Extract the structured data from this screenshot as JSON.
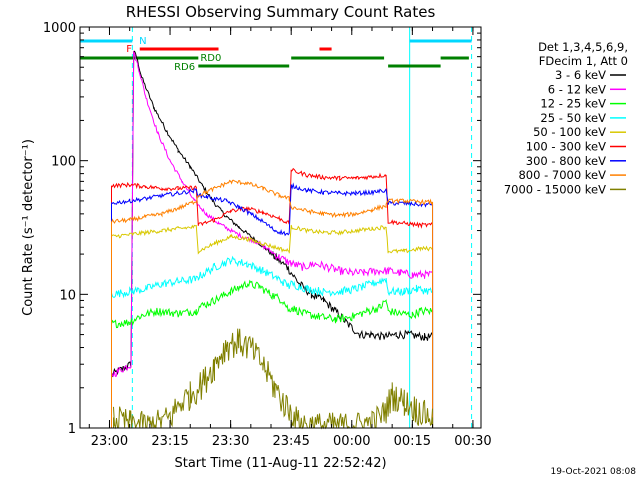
{
  "chart_data": {
    "type": "line",
    "title": "RHESSI Observing Summary Count Rates",
    "xlabel": "Start Time (11-Aug-11 22:52:42)",
    "ylabel": "Count Rate (s⁻¹ detector⁻¹)",
    "y_scale": "log",
    "ylim": [
      1,
      1000
    ],
    "xlim": [
      "22:52:42",
      "00:32:00"
    ],
    "x_ticks": [
      "23:00",
      "23:15",
      "23:30",
      "23:45",
      "00:00",
      "00:15",
      "00:30"
    ],
    "y_ticks": [
      "1",
      "10",
      "100",
      "1000"
    ],
    "grid": false,
    "legend_position": "right",
    "legend_header": [
      "Det 1,3,4,5,6,9,",
      "FDecim 1, Att 0"
    ],
    "footer_date": "19-Oct-2021 08:08",
    "flags": [
      {
        "label": "N",
        "color": "#00d8ff"
      },
      {
        "label": "F",
        "color": "#ff0000"
      },
      {
        "label": "RD0",
        "color": "#008000"
      },
      {
        "label": "RD6",
        "color": "#008000"
      }
    ],
    "series": [
      {
        "name": "3 - 6 keV",
        "color": "#000000",
        "points": [
          [
            "23:00:30",
            2.5
          ],
          [
            "23:05:20",
            3.0
          ],
          [
            "23:06:00",
            660
          ],
          [
            "23:06:40",
            600
          ],
          [
            "23:08:00",
            420
          ],
          [
            "23:11:00",
            250
          ],
          [
            "23:14:00",
            170
          ],
          [
            "23:17:00",
            120
          ],
          [
            "23:20:00",
            90
          ],
          [
            "23:23:00",
            65
          ],
          [
            "23:26:00",
            48
          ],
          [
            "23:29:00",
            38
          ],
          [
            "23:32:00",
            32
          ],
          [
            "23:35:00",
            27
          ],
          [
            "23:38:00",
            23
          ],
          [
            "23:41:00",
            19
          ],
          [
            "23:44:00",
            16
          ],
          [
            "23:47:00",
            12
          ],
          [
            "23:50:00",
            10
          ],
          [
            "23:53:00",
            9
          ],
          [
            "23:56:00",
            7.5
          ],
          [
            "23:59:00",
            6
          ],
          [
            "00:02:00",
            5
          ],
          [
            "00:05:00",
            5
          ],
          [
            "00:08:00",
            4.8
          ],
          [
            "00:11:00",
            5
          ],
          [
            "00:14:00",
            5
          ],
          [
            "00:18:00",
            4.8
          ],
          [
            "00:20:00",
            4.8
          ]
        ]
      },
      {
        "name": "6 - 12 keV",
        "color": "#ff00ff",
        "points": [
          [
            "23:00:30",
            2.5
          ],
          [
            "23:05:20",
            3.0
          ],
          [
            "23:06:00",
            650
          ],
          [
            "23:07:00",
            520
          ],
          [
            "23:09:00",
            300
          ],
          [
            "23:12:00",
            160
          ],
          [
            "23:15:00",
            100
          ],
          [
            "23:18:00",
            70
          ],
          [
            "23:21:00",
            50
          ],
          [
            "23:24:00",
            40
          ],
          [
            "23:27:00",
            34
          ],
          [
            "23:30:00",
            30
          ],
          [
            "23:33:00",
            27
          ],
          [
            "23:36:00",
            25
          ],
          [
            "23:39:00",
            22
          ],
          [
            "23:42:00",
            19
          ],
          [
            "23:45:00",
            17
          ],
          [
            "23:48:00",
            16
          ],
          [
            "23:51:00",
            17
          ],
          [
            "23:54:00",
            16
          ],
          [
            "23:57:00",
            15
          ],
          [
            "00:00:00",
            14.5
          ],
          [
            "00:03:00",
            14.5
          ],
          [
            "00:06:00",
            15
          ],
          [
            "00:09:00",
            15
          ],
          [
            "00:12:00",
            14.5
          ],
          [
            "00:15:00",
            14
          ],
          [
            "00:18:00",
            14
          ],
          [
            "00:20:00",
            14
          ]
        ]
      },
      {
        "name": "12 - 25 keV",
        "color": "#00ff00",
        "points": [
          [
            "23:00:30",
            6
          ],
          [
            "23:05:00",
            6.2
          ],
          [
            "23:08:00",
            7
          ],
          [
            "23:12:00",
            7.5
          ],
          [
            "23:17:00",
            7.2
          ],
          [
            "23:21:30",
            7.5
          ],
          [
            "23:22:00",
            8
          ],
          [
            "23:26:00",
            9
          ],
          [
            "23:30:00",
            10.5
          ],
          [
            "23:34:00",
            12
          ],
          [
            "23:37:00",
            11.5
          ],
          [
            "23:40:00",
            10
          ],
          [
            "23:43:00",
            9
          ],
          [
            "23:44:30",
            7.5
          ],
          [
            "23:45:00",
            8
          ],
          [
            "23:48:00",
            7.2
          ],
          [
            "23:52:00",
            6.8
          ],
          [
            "23:56:00",
            6.5
          ],
          [
            "00:00:00",
            6.8
          ],
          [
            "00:04:00",
            7.5
          ],
          [
            "00:07:00",
            8
          ],
          [
            "00:08:30",
            9
          ],
          [
            "00:09:00",
            7.5
          ],
          [
            "00:12:00",
            7.2
          ],
          [
            "00:15:00",
            7
          ],
          [
            "00:17:00",
            7.5
          ],
          [
            "00:20:00",
            7.5
          ]
        ]
      },
      {
        "name": "25 - 50 keV",
        "color": "#00ffff",
        "points": [
          [
            "23:00:30",
            10
          ],
          [
            "23:05:00",
            10.5
          ],
          [
            "23:09:00",
            11
          ],
          [
            "23:13:00",
            12
          ],
          [
            "23:17:00",
            12.5
          ],
          [
            "23:21:30",
            13
          ],
          [
            "23:22:00",
            13.5
          ],
          [
            "23:26:00",
            16
          ],
          [
            "23:30:00",
            18
          ],
          [
            "23:34:00",
            17
          ],
          [
            "23:38:00",
            15
          ],
          [
            "23:42:00",
            13
          ],
          [
            "23:44:30",
            11.5
          ],
          [
            "23:45:00",
            12
          ],
          [
            "23:49:00",
            11
          ],
          [
            "23:53:00",
            10.5
          ],
          [
            "23:57:00",
            10.5
          ],
          [
            "00:01:00",
            11
          ],
          [
            "00:05:00",
            12
          ],
          [
            "00:08:30",
            13
          ],
          [
            "00:09:00",
            10.5
          ],
          [
            "00:13:00",
            10.5
          ],
          [
            "00:16:00",
            11
          ],
          [
            "00:20:00",
            10.5
          ]
        ]
      },
      {
        "name": "50 - 100 keV",
        "color": "#d8c800",
        "points": [
          [
            "23:00:30",
            27
          ],
          [
            "23:05:00",
            28
          ],
          [
            "23:09:00",
            29
          ],
          [
            "23:13:00",
            30
          ],
          [
            "23:17:00",
            31
          ],
          [
            "23:21:30",
            32
          ],
          [
            "23:22:00",
            21
          ],
          [
            "23:26:00",
            24
          ],
          [
            "23:30:00",
            27
          ],
          [
            "23:34:00",
            26
          ],
          [
            "23:38:00",
            24
          ],
          [
            "23:42:00",
            22
          ],
          [
            "23:44:30",
            21
          ],
          [
            "23:45:00",
            32
          ],
          [
            "23:49:00",
            30
          ],
          [
            "23:53:00",
            29
          ],
          [
            "23:57:00",
            29
          ],
          [
            "00:01:00",
            30
          ],
          [
            "00:05:00",
            31
          ],
          [
            "00:08:30",
            32
          ],
          [
            "00:09:00",
            21
          ],
          [
            "00:13:00",
            21
          ],
          [
            "00:17:00",
            22
          ],
          [
            "00:20:00",
            22
          ]
        ]
      },
      {
        "name": "100 - 300 keV",
        "color": "#ff0000",
        "points": [
          [
            "23:00:30",
            65
          ],
          [
            "23:05:00",
            66
          ],
          [
            "23:09:00",
            64
          ],
          [
            "23:13:00",
            62
          ],
          [
            "23:17:00",
            62
          ],
          [
            "23:21:30",
            63
          ],
          [
            "23:22:00",
            33
          ],
          [
            "23:26:00",
            36
          ],
          [
            "23:30:00",
            42
          ],
          [
            "23:34:00",
            44
          ],
          [
            "23:38:00",
            41
          ],
          [
            "23:42:00",
            37
          ],
          [
            "23:44:30",
            34
          ],
          [
            "23:45:00",
            85
          ],
          [
            "23:49:00",
            78
          ],
          [
            "23:53:00",
            75
          ],
          [
            "23:57:00",
            74
          ],
          [
            "00:01:00",
            74
          ],
          [
            "00:05:00",
            76
          ],
          [
            "00:08:30",
            78
          ],
          [
            "00:09:00",
            35
          ],
          [
            "00:13:00",
            34
          ],
          [
            "00:17:00",
            33
          ],
          [
            "00:20:00",
            33
          ]
        ]
      },
      {
        "name": "300 - 800 keV",
        "color": "#0000ff",
        "points": [
          [
            "23:00:30",
            48
          ],
          [
            "23:05:00",
            50
          ],
          [
            "23:09:00",
            52
          ],
          [
            "23:13:00",
            55
          ],
          [
            "23:17:00",
            57
          ],
          [
            "23:21:30",
            60
          ],
          [
            "23:22:00",
            55
          ],
          [
            "23:24:00",
            54
          ],
          [
            "23:26:00",
            52
          ],
          [
            "23:29:00",
            50
          ],
          [
            "23:32:00",
            45
          ],
          [
            "23:35:00",
            40
          ],
          [
            "23:38:00",
            35
          ],
          [
            "23:41:00",
            30
          ],
          [
            "23:44:30",
            28
          ],
          [
            "23:45:00",
            65
          ],
          [
            "23:49:00",
            60
          ],
          [
            "23:53:00",
            58
          ],
          [
            "23:57:00",
            57
          ],
          [
            "00:01:00",
            57
          ],
          [
            "00:05:00",
            58
          ],
          [
            "00:08:30",
            60
          ],
          [
            "00:09:00",
            48
          ],
          [
            "00:13:00",
            48
          ],
          [
            "00:17:00",
            47
          ],
          [
            "00:20:00",
            47
          ]
        ]
      },
      {
        "name": "800 - 7000 keV",
        "color": "#ff8000",
        "points": [
          [
            "23:00:30",
            35
          ],
          [
            "23:05:00",
            36
          ],
          [
            "23:09:00",
            38
          ],
          [
            "23:13:00",
            40
          ],
          [
            "23:17:00",
            44
          ],
          [
            "23:21:30",
            50
          ],
          [
            "23:22:00",
            55
          ],
          [
            "23:26:00",
            62
          ],
          [
            "23:30:00",
            70
          ],
          [
            "23:34:00",
            68
          ],
          [
            "23:38:00",
            62
          ],
          [
            "23:42:00",
            55
          ],
          [
            "23:44:30",
            52
          ],
          [
            "23:45:00",
            45
          ],
          [
            "23:49:00",
            42
          ],
          [
            "23:53:00",
            40
          ],
          [
            "23:57:00",
            39
          ],
          [
            "00:01:00",
            40
          ],
          [
            "00:05:00",
            43
          ],
          [
            "00:08:30",
            46
          ],
          [
            "00:09:00",
            50
          ],
          [
            "00:13:00",
            50
          ],
          [
            "00:17:00",
            49
          ],
          [
            "00:20:00",
            49
          ]
        ]
      },
      {
        "name": "7000 - 15000 keV",
        "color": "#808000",
        "points": [
          [
            "23:01:00",
            1.2
          ],
          [
            "23:05:00",
            1.1
          ],
          [
            "23:10:00",
            1.05
          ],
          [
            "23:15:00",
            1.2
          ],
          [
            "23:17:00",
            1.5
          ],
          [
            "23:20:00",
            1.8
          ],
          [
            "23:23:00",
            2.2
          ],
          [
            "23:26:00",
            3.0
          ],
          [
            "23:29:00",
            4.2
          ],
          [
            "23:32:00",
            4.5
          ],
          [
            "23:35:00",
            4.0
          ],
          [
            "23:38:00",
            3.0
          ],
          [
            "23:41:00",
            2.0
          ],
          [
            "23:43:00",
            1.6
          ],
          [
            "23:45:00",
            1.3
          ],
          [
            "23:47:00",
            1.1
          ],
          [
            "23:50:00",
            1.05
          ],
          [
            "00:00:00",
            1.05
          ],
          [
            "00:05:00",
            1.1
          ],
          [
            "00:08:00",
            1.3
          ],
          [
            "00:10:00",
            1.8
          ],
          [
            "00:13:00",
            1.6
          ],
          [
            "00:16:00",
            1.4
          ],
          [
            "00:20:00",
            1.2
          ]
        ]
      }
    ]
  }
}
